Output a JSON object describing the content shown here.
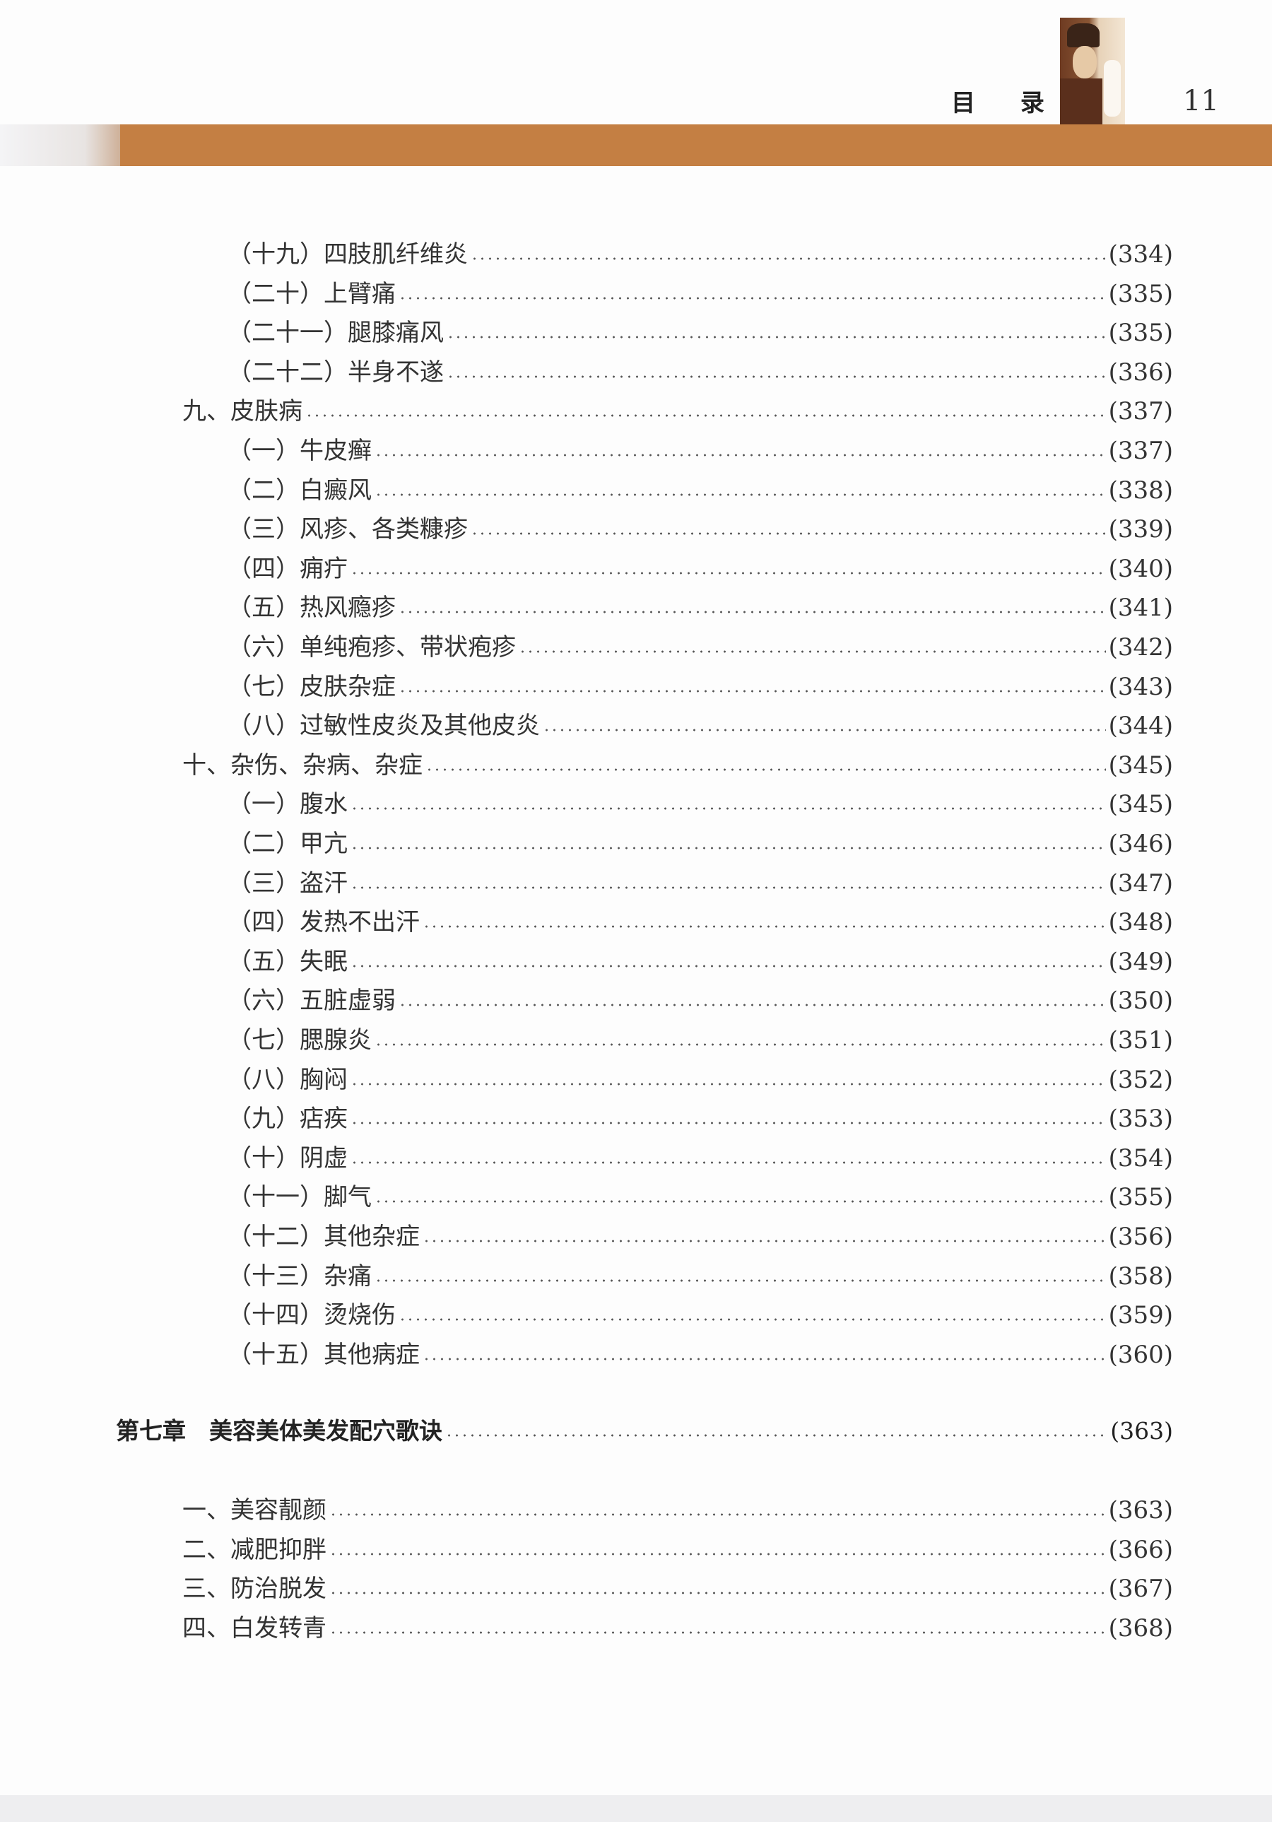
{
  "header": {
    "section_title": "目 录",
    "page_number": "11",
    "band_color": "#c47f43"
  },
  "list_a": [
    {
      "level": 2,
      "label": "（十九）四肢肌纤维炎",
      "page": "(334)"
    },
    {
      "level": 2,
      "label": "（二十）上臂痛",
      "page": "(335)"
    },
    {
      "level": 2,
      "label": "（二十一）腿膝痛风",
      "page": "(335)"
    },
    {
      "level": 2,
      "label": "（二十二）半身不遂",
      "page": "(336)"
    },
    {
      "level": 1,
      "label": "九、皮肤病",
      "page": "(337)"
    },
    {
      "level": 2,
      "label": "（一）牛皮癣",
      "page": "(337)"
    },
    {
      "level": 2,
      "label": "（二）白癜风",
      "page": "(338)"
    },
    {
      "level": 2,
      "label": "（三）风疹、各类糠疹",
      "page": "(339)"
    },
    {
      "level": 2,
      "label": "（四）痈疔",
      "page": "(340)"
    },
    {
      "level": 2,
      "label": "（五）热风瘾疹",
      "page": "(341)"
    },
    {
      "level": 2,
      "label": "（六）单纯疱疹、带状疱疹",
      "page": "(342)"
    },
    {
      "level": 2,
      "label": "（七）皮肤杂症",
      "page": "(343)"
    },
    {
      "level": 2,
      "label": "（八）过敏性皮炎及其他皮炎",
      "page": "(344)"
    },
    {
      "level": 1,
      "label": "十、杂伤、杂病、杂症",
      "page": "(345)"
    },
    {
      "level": 2,
      "label": "（一）腹水",
      "page": "(345)"
    },
    {
      "level": 2,
      "label": "（二）甲亢",
      "page": "(346)"
    },
    {
      "level": 2,
      "label": "（三）盗汗",
      "page": "(347)"
    },
    {
      "level": 2,
      "label": "（四）发热不出汗",
      "page": "(348)"
    },
    {
      "level": 2,
      "label": "（五）失眠",
      "page": "(349)"
    },
    {
      "level": 2,
      "label": "（六）五脏虚弱",
      "page": "(350)"
    },
    {
      "level": 2,
      "label": "（七）腮腺炎",
      "page": "(351)"
    },
    {
      "level": 2,
      "label": "（八）胸闷",
      "page": "(352)"
    },
    {
      "level": 2,
      "label": "（九）痁疾",
      "page": "(353)"
    },
    {
      "level": 2,
      "label": "（十）阴虚",
      "page": "(354)"
    },
    {
      "level": 2,
      "label": "（十一）脚气",
      "page": "(355)"
    },
    {
      "level": 2,
      "label": "（十二）其他杂症",
      "page": "(356)"
    },
    {
      "level": 2,
      "label": "（十三）杂痛",
      "page": "(358)"
    },
    {
      "level": 2,
      "label": "（十四）烫烧伤",
      "page": "(359)"
    },
    {
      "level": 2,
      "label": "（十五）其他病症",
      "page": "(360)"
    }
  ],
  "chapter": {
    "label": "第七章　美容美体美发配穴歌诀",
    "page": "(363)"
  },
  "list_b": [
    {
      "level": 1,
      "label": "一、美容靓颜",
      "page": "(363)"
    },
    {
      "level": 1,
      "label": "二、减肥抑胖",
      "page": "(366)"
    },
    {
      "level": 1,
      "label": "三、防治脱发",
      "page": "(367)"
    },
    {
      "level": 1,
      "label": "四、白发转青",
      "page": "(368)"
    }
  ]
}
